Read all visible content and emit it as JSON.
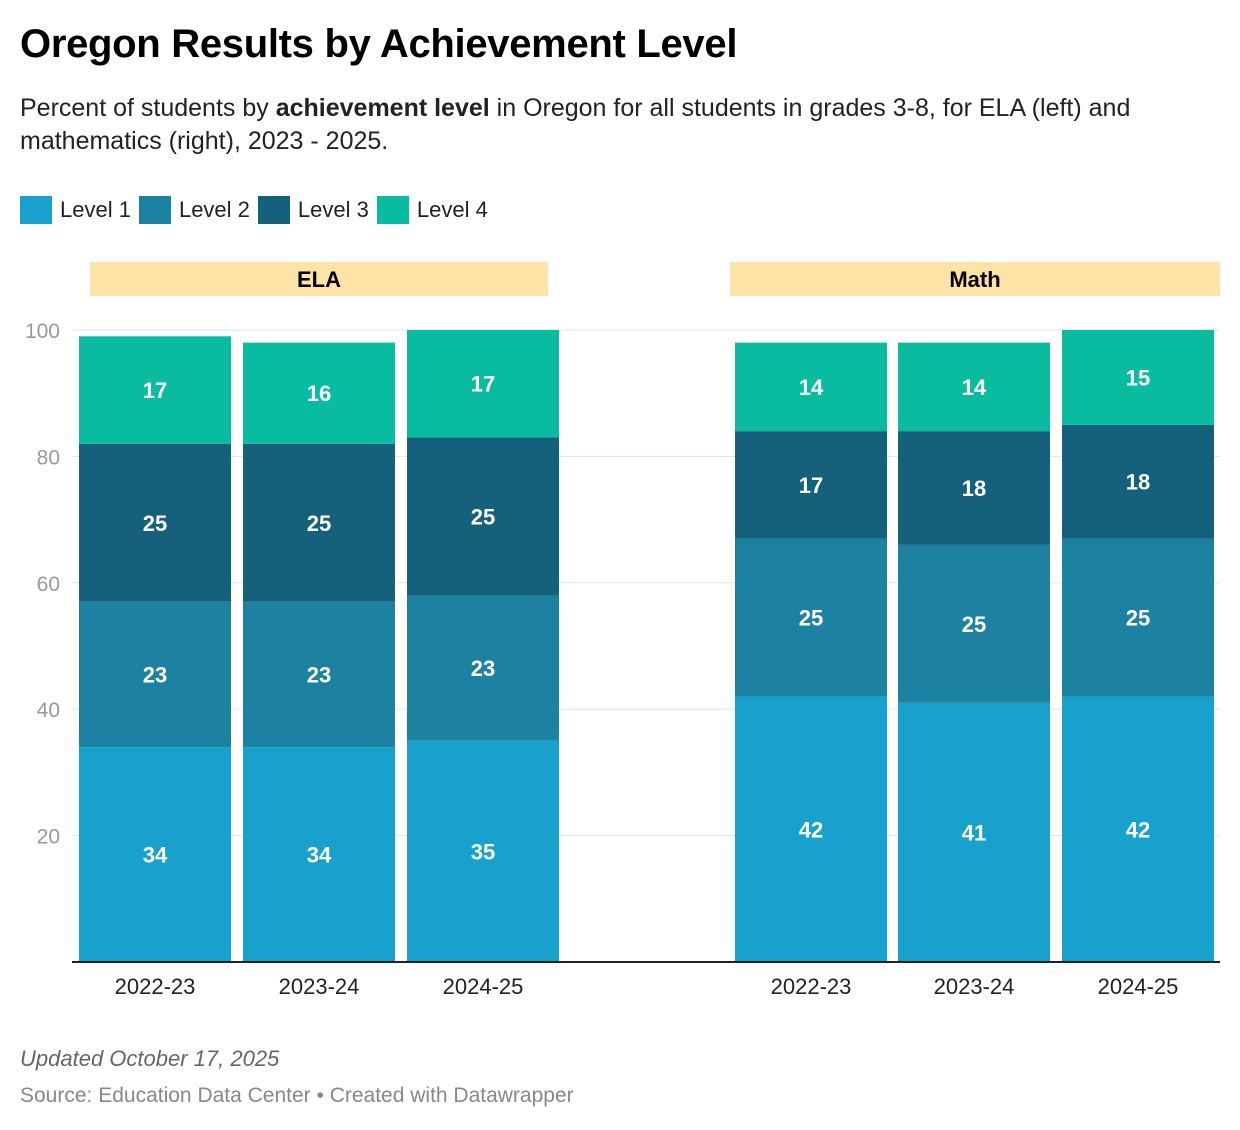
{
  "title": "Oregon Results by Achievement Level",
  "subtitle": {
    "pre": "Percent of students by ",
    "bold": "achievement level",
    "post": " in Oregon for all students in grades 3-8, for ELA (left) and mathematics (right), 2023 - 2025."
  },
  "footer": {
    "updated": "Updated October 17, 2025",
    "source": "Source: Education Data Center • Created with Datawrapper"
  },
  "chart_data": {
    "type": "bar",
    "stacked": true,
    "title": "Oregon Results by Achievement Level",
    "ylim": [
      0,
      100
    ],
    "yticks": [
      20,
      40,
      60,
      80,
      100
    ],
    "grid": true,
    "legend_position": "top-left",
    "series_names": [
      "Level 1",
      "Level 2",
      "Level 3",
      "Level 4"
    ],
    "colors": [
      "#18a1cd",
      "#1d81a2",
      "#15607a",
      "#09bb9f"
    ],
    "panels": [
      {
        "name": "ELA",
        "categories": [
          "2022-23",
          "2023-24",
          "2024-25"
        ],
        "series": [
          {
            "name": "Level 1",
            "values": [
              34,
              34,
              35
            ]
          },
          {
            "name": "Level 2",
            "values": [
              23,
              23,
              23
            ]
          },
          {
            "name": "Level 3",
            "values": [
              25,
              25,
              25
            ]
          },
          {
            "name": "Level 4",
            "values": [
              17,
              16,
              17
            ]
          }
        ]
      },
      {
        "name": "Math",
        "categories": [
          "2022-23",
          "2023-24",
          "2024-25"
        ],
        "series": [
          {
            "name": "Level 1",
            "values": [
              42,
              41,
              42
            ]
          },
          {
            "name": "Level 2",
            "values": [
              25,
              25,
              25
            ]
          },
          {
            "name": "Level 3",
            "values": [
              17,
              18,
              18
            ]
          },
          {
            "name": "Level 4",
            "values": [
              14,
              14,
              15
            ]
          }
        ]
      }
    ]
  }
}
